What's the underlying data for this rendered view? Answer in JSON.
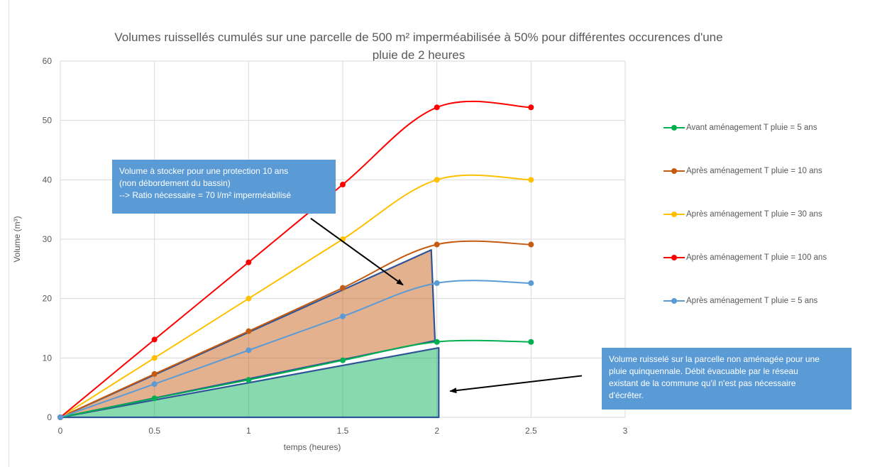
{
  "chart_data": {
    "type": "line",
    "title": "Volumes ruissellés cumulés sur une parcelle de 500 m² imperméabilisée à 50% pour différentes occurences d'une pluie de 2 heures",
    "title_lines": [
      "Volumes ruissellés cumulés sur une parcelle de 500 m² imperméabilisée à 50% pour différentes occurences d'une",
      "pluie de 2 heures"
    ],
    "xlabel": "temps (heures)",
    "ylabel": "Volume (m³)",
    "xlim": [
      0,
      3
    ],
    "ylim": [
      0,
      60
    ],
    "x_ticks": [
      0,
      0.5,
      1,
      1.5,
      2,
      2.5,
      3
    ],
    "x_tick_labels": [
      "0",
      "0.5",
      "1",
      "1.5",
      "2",
      "2.5",
      "3"
    ],
    "y_ticks": [
      0,
      10,
      20,
      30,
      40,
      50,
      60
    ],
    "y_tick_labels": [
      "0",
      "10",
      "20",
      "30",
      "40",
      "50",
      "60"
    ],
    "grid": true,
    "legend_position": "right",
    "x": [
      0,
      0.5,
      1,
      1.5,
      2,
      2.5
    ],
    "series": [
      {
        "name": "Avant aménagement T pluie = 5 ans",
        "color": "#00b050",
        "values": [
          0,
          3.2,
          6.3,
          9.6,
          12.7,
          12.7
        ]
      },
      {
        "name": "Après aménagement T pluie = 10 ans",
        "color": "#c55a11",
        "values": [
          0,
          7.3,
          14.5,
          21.8,
          29.1,
          29.1
        ]
      },
      {
        "name": "Après aménagement T pluie = 30 ans",
        "color": "#ffc000",
        "values": [
          0,
          10,
          20,
          30,
          40,
          40
        ]
      },
      {
        "name": "Après aménagement T pluie = 100 ans",
        "color": "#ff0000",
        "values": [
          0,
          13.1,
          26.1,
          39.2,
          52.2,
          52.2
        ]
      },
      {
        "name": "Après aménagement T pluie = 5 ans",
        "color": "#5b9bd5",
        "values": [
          0,
          5.6,
          11.3,
          17.0,
          22.6,
          22.6
        ]
      }
    ],
    "shapes": [
      {
        "name": "storage-volume-area",
        "fill": "#c55a11",
        "outline": "#2f5597",
        "points": [
          [
            0,
            0
          ],
          [
            1.97,
            28.2
          ],
          [
            1.99,
            12.9
          ],
          [
            0,
            0
          ]
        ]
      },
      {
        "name": "natural-runoff-area",
        "fill": "#00b050",
        "outline": "#2f5597",
        "points": [
          [
            0,
            0
          ],
          [
            2.01,
            11.7
          ],
          [
            2.01,
            0
          ],
          [
            0,
            0
          ]
        ]
      }
    ],
    "annotations": [
      {
        "name": "storage-annotation",
        "lines": [
          "Volume à stocker pour une protection 10 ans",
          "(non débordement du bassin)",
          "--> Ratio nécessaire = 70 l/m² imperméabilisé"
        ],
        "arrow_from": [
          1.33,
          33.5
        ],
        "arrow_to": [
          1.82,
          22.3
        ]
      },
      {
        "name": "natural-runoff-annotation",
        "lines": [
          "Volume ruisselé sur la parcelle non aménagée pour une",
          "pluie quinquennale. Débit évacuable par le réseau",
          "existant de la commune qu'il n'est pas nécessaire",
          "d'écrêter."
        ],
        "arrow_from": [
          2.77,
          7.0
        ],
        "arrow_to": [
          2.07,
          4.4
        ]
      }
    ]
  }
}
